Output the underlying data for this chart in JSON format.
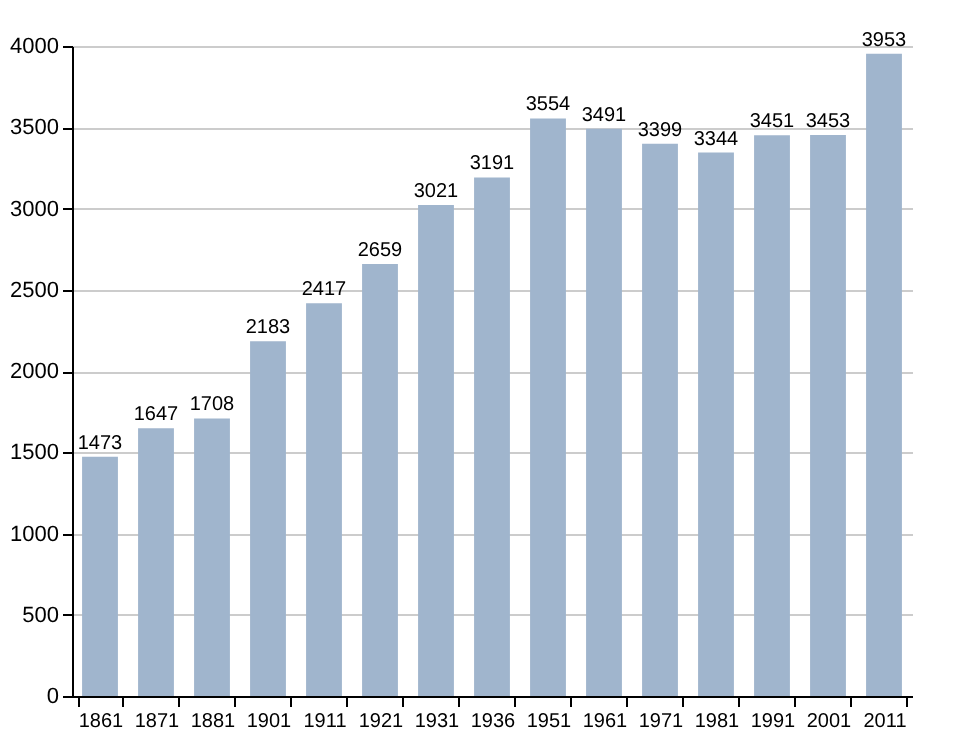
{
  "chart_data": {
    "type": "bar",
    "categories": [
      "1861",
      "1871",
      "1881",
      "1901",
      "1911",
      "1921",
      "1931",
      "1936",
      "1951",
      "1961",
      "1971",
      "1981",
      "1991",
      "2001",
      "2011"
    ],
    "values": [
      1473,
      1647,
      1708,
      2183,
      2417,
      2659,
      3021,
      3191,
      3554,
      3491,
      3399,
      3344,
      3451,
      3453,
      3953
    ],
    "color": "#a0b5cd",
    "ylim": [
      0,
      4000
    ],
    "yticks": [
      0,
      500,
      1000,
      1500,
      2000,
      2500,
      3000,
      3500,
      4000
    ],
    "grid": "y",
    "data_labels": true
  }
}
